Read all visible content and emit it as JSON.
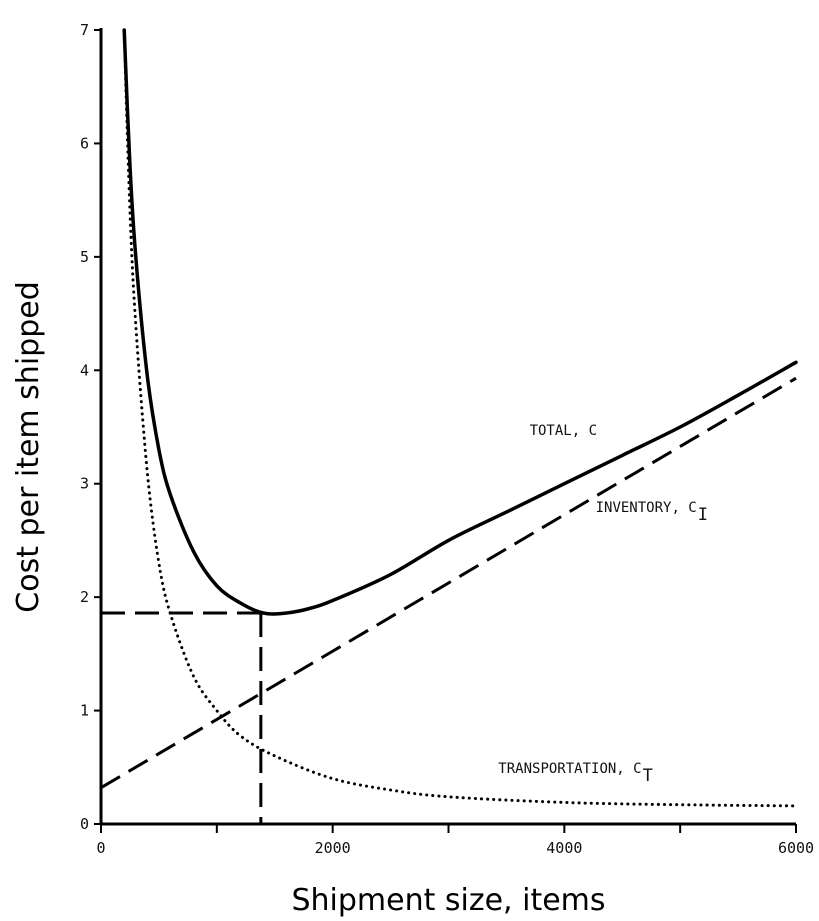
{
  "chart_data": {
    "type": "line",
    "title": "",
    "xlabel": "Shipment size, items",
    "ylabel": "Cost per item shipped",
    "xlim": [
      0,
      6000
    ],
    "ylim": [
      0,
      7
    ],
    "x_ticks": [
      0,
      2000,
      4000,
      6000
    ],
    "x_tick_labels": [
      "0",
      "2000",
      "4000",
      "6000"
    ],
    "x_minor_ticks": [
      1000,
      3000,
      5000
    ],
    "y_ticks": [
      0,
      1,
      2,
      3,
      4,
      5,
      6,
      7
    ],
    "y_tick_labels": [
      "0",
      "1",
      "2",
      "3",
      "4",
      "5",
      "6",
      "7"
    ],
    "grid": false,
    "legend": "none",
    "series": [
      {
        "name": "TOTAL, C",
        "style": "solid",
        "x": [
          200,
          250,
          300,
          400,
          500,
          600,
          800,
          1000,
          1200,
          1400,
          1600,
          1800,
          2000,
          2500,
          3000,
          3500,
          4000,
          4500,
          5000,
          5500,
          6000
        ],
        "y": [
          7.0,
          5.8,
          5.0,
          3.95,
          3.3,
          2.9,
          2.4,
          2.1,
          1.95,
          1.86,
          1.86,
          1.9,
          1.97,
          2.2,
          2.5,
          2.75,
          3.0,
          3.25,
          3.5,
          3.78,
          4.07
        ]
      },
      {
        "name": "INVENTORY, C",
        "name_subscript": "I",
        "style": "dashed",
        "x": [
          0,
          6000
        ],
        "y": [
          0.32,
          3.93
        ]
      },
      {
        "name": "TRANSPORTATION, C",
        "name_subscript": "T",
        "style": "dotted",
        "x": [
          200,
          250,
          300,
          400,
          500,
          600,
          800,
          1000,
          1200,
          1500,
          2000,
          2500,
          3000,
          4000,
          5000,
          6000
        ],
        "y": [
          7.0,
          5.4,
          4.4,
          3.1,
          2.3,
          1.85,
          1.3,
          1.0,
          0.78,
          0.6,
          0.4,
          0.3,
          0.24,
          0.19,
          0.17,
          0.16
        ]
      }
    ],
    "reference_lines": {
      "style": "dashed",
      "optimum_x": 1380,
      "optimum_y": 1.86
    },
    "annotations": [
      {
        "text": "TOTAL, C",
        "x": 3700,
        "y": 3.43
      },
      {
        "text": "INVENTORY, C",
        "subscript": "I",
        "x": 4270,
        "y": 2.75
      },
      {
        "text": "TRANSPORTATION, C",
        "subscript": "T",
        "x": 3430,
        "y": 0.45
      }
    ]
  },
  "colors": {
    "ink": "#000000"
  }
}
